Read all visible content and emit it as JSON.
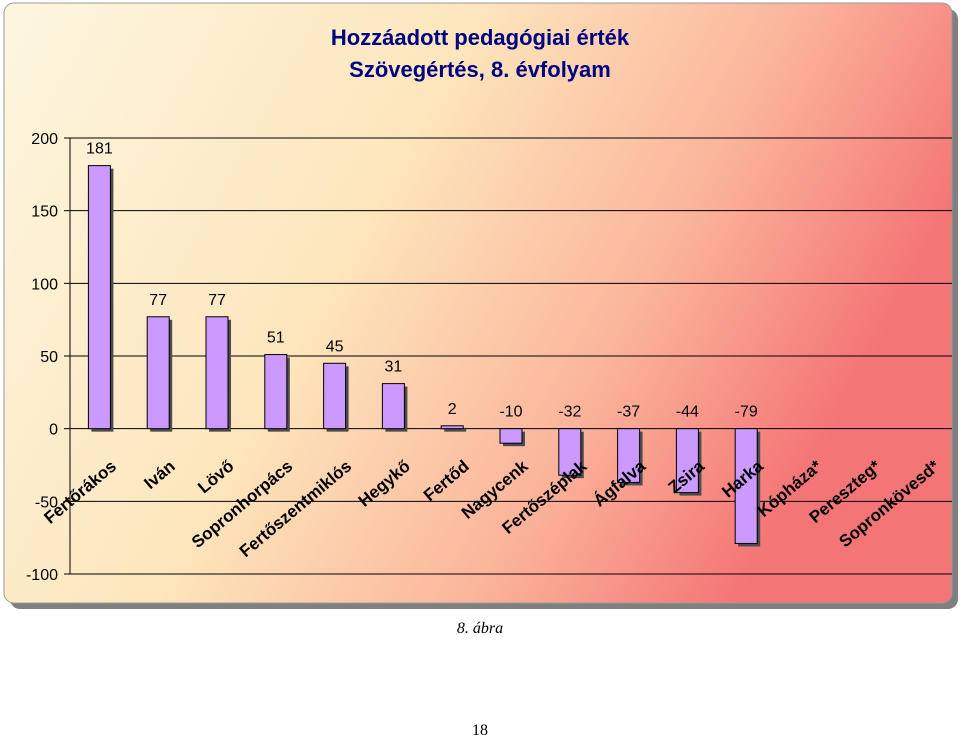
{
  "chart_data": {
    "type": "bar",
    "title": "Hozzáadott pedagógiai érték",
    "subtitle": "Szövegértés, 8. évfolyam",
    "categories": [
      "Fertőrákos",
      "Iván",
      "Lövő",
      "Sopronhorpács",
      "Fertőszentmiklós",
      "Hegykő",
      "Fertőd",
      "Nagycenk",
      "Fertőszéplak",
      "Ágfalva",
      "Zsira",
      "Harka",
      "Kópháza*",
      "Pereszteg*",
      "Sopronkövesd*"
    ],
    "values": [
      181,
      77,
      77,
      51,
      45,
      31,
      2,
      -10,
      -32,
      -37,
      -44,
      -79,
      null,
      null,
      null
    ],
    "value_labels": [
      "181",
      "77",
      "77",
      "51",
      "45",
      "31",
      "2",
      "-10",
      "-32",
      "-37",
      "-44",
      "-79",
      "",
      "",
      ""
    ],
    "ylim": [
      -100,
      200
    ],
    "yticks": [
      -100,
      -50,
      0,
      50,
      100,
      150,
      200
    ],
    "ytick_labels": [
      "-100",
      "-50",
      "0",
      "50",
      "100",
      "150",
      "200"
    ],
    "xlabel": "",
    "ylabel": "",
    "legend": "none",
    "grid": "horizontal",
    "colors": {
      "bar_fill": "#cc99ff",
      "bar_shadow": "#4d4d4d",
      "background_left": "#fdf3d6",
      "background_right": "#f77f7f",
      "title": "#000080"
    }
  },
  "caption": "8. ábra",
  "page_number": "18"
}
